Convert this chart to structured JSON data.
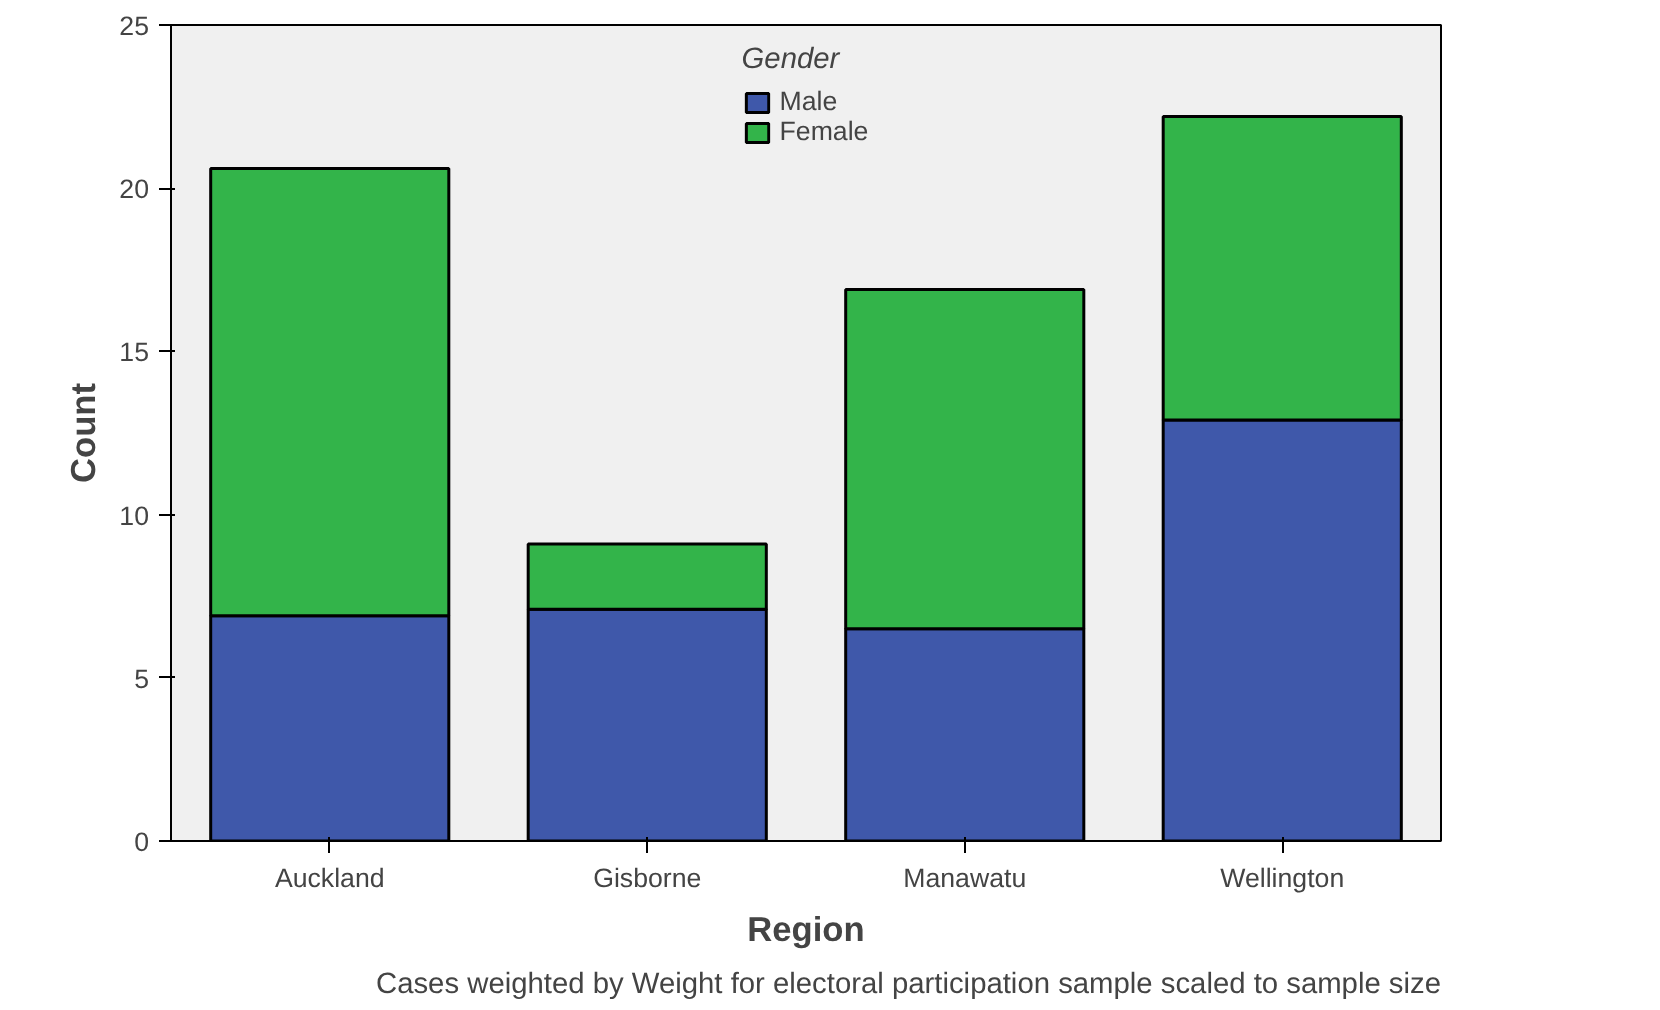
{
  "chart_data": {
    "type": "bar",
    "stacked": true,
    "xlabel": "Region",
    "ylabel": "Count",
    "legend_title": "Gender",
    "legend": "top",
    "grid": false,
    "categories": [
      "Auckland",
      "Gisborne",
      "Manawatu",
      "Wellington"
    ],
    "series": [
      {
        "name": "Male",
        "color": "#3f58aa",
        "values": [
          6.9,
          7.1,
          6.5,
          12.9
        ]
      },
      {
        "name": "Female",
        "color": "#33b44a",
        "values": [
          13.7,
          2.0,
          10.4,
          9.3
        ]
      }
    ],
    "ylim": [
      0,
      25
    ],
    "yticks": [
      0,
      5,
      10,
      15,
      20,
      25
    ],
    "annotations": [
      "Cases weighted by Weight for electoral participation sample scaled to sample size"
    ]
  }
}
